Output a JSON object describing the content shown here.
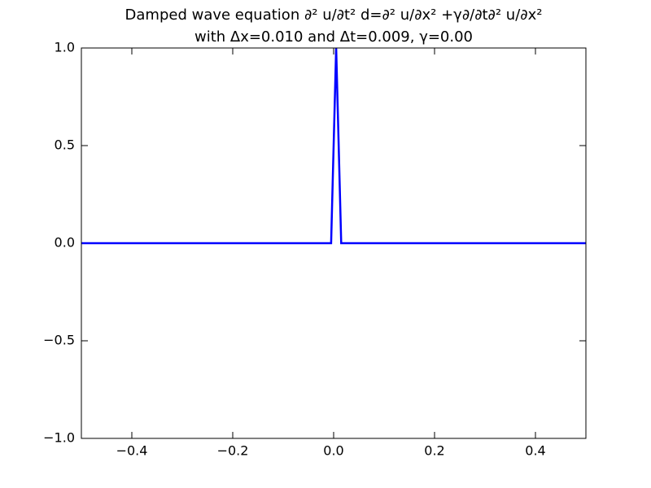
{
  "chart_data": {
    "type": "line",
    "title": "Damped wave equation ∂² u/∂t² d=∂² u/∂x² +γ∂/∂t∂² u/∂x²",
    "subtitle": "with Δx=0.010 and Δt=0.009, γ=0.00",
    "x": [
      -0.5,
      -0.005,
      0.005,
      0.015,
      0.5
    ],
    "series": [
      {
        "color": "#0000ff",
        "values": [
          0,
          0,
          1,
          0,
          0
        ]
      }
    ],
    "xlim": [
      -0.5,
      0.5
    ],
    "ylim": [
      -1,
      1
    ],
    "xticks": [
      {
        "value": -0.4,
        "label": "−0.4"
      },
      {
        "value": -0.2,
        "label": "−0.2"
      },
      {
        "value": 0,
        "label": "0.0"
      },
      0.2,
      0.4
    ],
    "yticks": [
      {
        "value": -1,
        "label": "−1.0"
      },
      {
        "value": -0.5,
        "label": "−0.5"
      },
      {
        "value": 0,
        "label": "0.0"
      },
      0.5,
      {
        "value": 1,
        "label": "1.0"
      }
    ],
    "grid": false
  }
}
